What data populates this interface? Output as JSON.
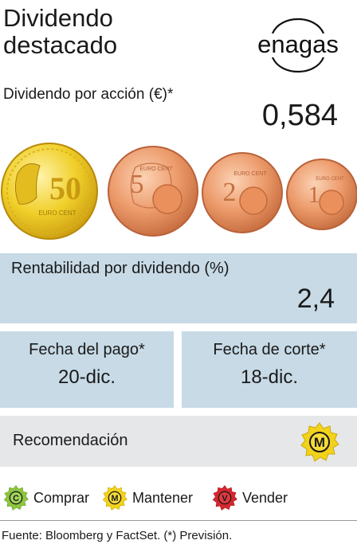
{
  "header": {
    "title_line1": "Dividendo",
    "title_line2": "destacado",
    "logo_text": "enagas"
  },
  "dividend_per_share": {
    "label": "Dividendo por acción (€)*",
    "value": "0,584"
  },
  "coins": {
    "icons": [
      "50-euro-cent-coin-icon",
      "5-euro-cent-coin-icon",
      "2-euro-cent-coin-icon",
      "1-euro-cent-coin-icon"
    ],
    "coin_texts": [
      "50",
      "EURO CENT",
      "5",
      "EURO CENT",
      "2",
      "EURO CENT",
      "1",
      "EURO CENT"
    ]
  },
  "yield": {
    "label": "Rentabilidad por dividendo (%)",
    "value": "2,4"
  },
  "payment_date": {
    "label": "Fecha del pago*",
    "value": "20-dic."
  },
  "cutoff_date": {
    "label": "Fecha de corte*",
    "value": "18-dic."
  },
  "recommendation": {
    "label": "Recomendación",
    "badge_letter": "M",
    "badge_color": "#f2d21a"
  },
  "legend": [
    {
      "letter": "C",
      "label": "Comprar",
      "color": "#8dc63f"
    },
    {
      "letter": "M",
      "label": "Mantener",
      "color": "#f2d21a"
    },
    {
      "letter": "V",
      "label": "Vender",
      "color": "#d7262d"
    }
  ],
  "colors": {
    "box_blue": "#c7dae6",
    "box_gray": "#e6e7e8",
    "gold": "#e8c21a",
    "copper": "#e08a5a"
  },
  "footer": {
    "source": "Fuente: Bloomberg y FactSet. (*) Previsión."
  }
}
